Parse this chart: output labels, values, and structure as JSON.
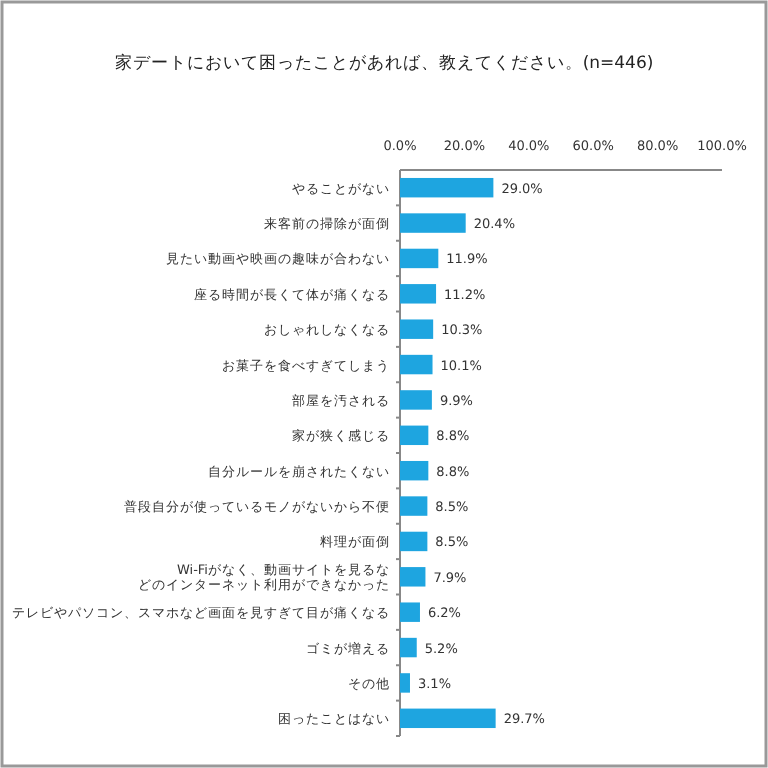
{
  "chart_data": {
    "type": "bar",
    "orientation": "horizontal",
    "title": "家デートにおいて困ったことがあれば、教えてください。(n=446)",
    "categories": [
      "やることがない",
      "来客前の掃除が面倒",
      "見たい動画や映画の趣味が合わない",
      "座る時間が長くて体が痛くなる",
      "おしゃれしなくなる",
      "お菓子を食べすぎてしまう",
      "部屋を汚される",
      "家が狭く感じる",
      "自分ルールを崩されたくない",
      "普段自分が使っているモノがないから不便",
      "料理が面倒",
      "Wi-Fiがなく、動画サイトを見るなどのインターネット利用ができなかった",
      "テレビやパソコン、スマホなど画面を見すぎて目が痛くなる",
      "ゴミが増える",
      "その他",
      "困ったことはない"
    ],
    "values": [
      29.0,
      20.4,
      11.9,
      11.2,
      10.3,
      10.1,
      9.9,
      8.8,
      8.8,
      8.5,
      8.5,
      7.9,
      6.2,
      5.2,
      3.1,
      29.7
    ],
    "value_labels": [
      "29.0%",
      "20.4%",
      "11.9%",
      "11.2%",
      "10.3%",
      "10.1%",
      "9.9%",
      "8.8%",
      "8.8%",
      "8.5%",
      "8.5%",
      "7.9%",
      "6.2%",
      "5.2%",
      "3.1%",
      "29.7%"
    ],
    "color": "#1ea5e0",
    "xlim": [
      0,
      100
    ],
    "xticks": [
      {
        "value": 0,
        "label": "0.0%"
      },
      {
        "value": 20,
        "label": "20.0%"
      },
      {
        "value": 40,
        "label": "40.0%"
      },
      {
        "value": 60,
        "label": "60.0%"
      },
      {
        "value": 80,
        "label": "80.0%"
      },
      {
        "value": 100,
        "label": "100.0%"
      }
    ],
    "grid": false
  }
}
